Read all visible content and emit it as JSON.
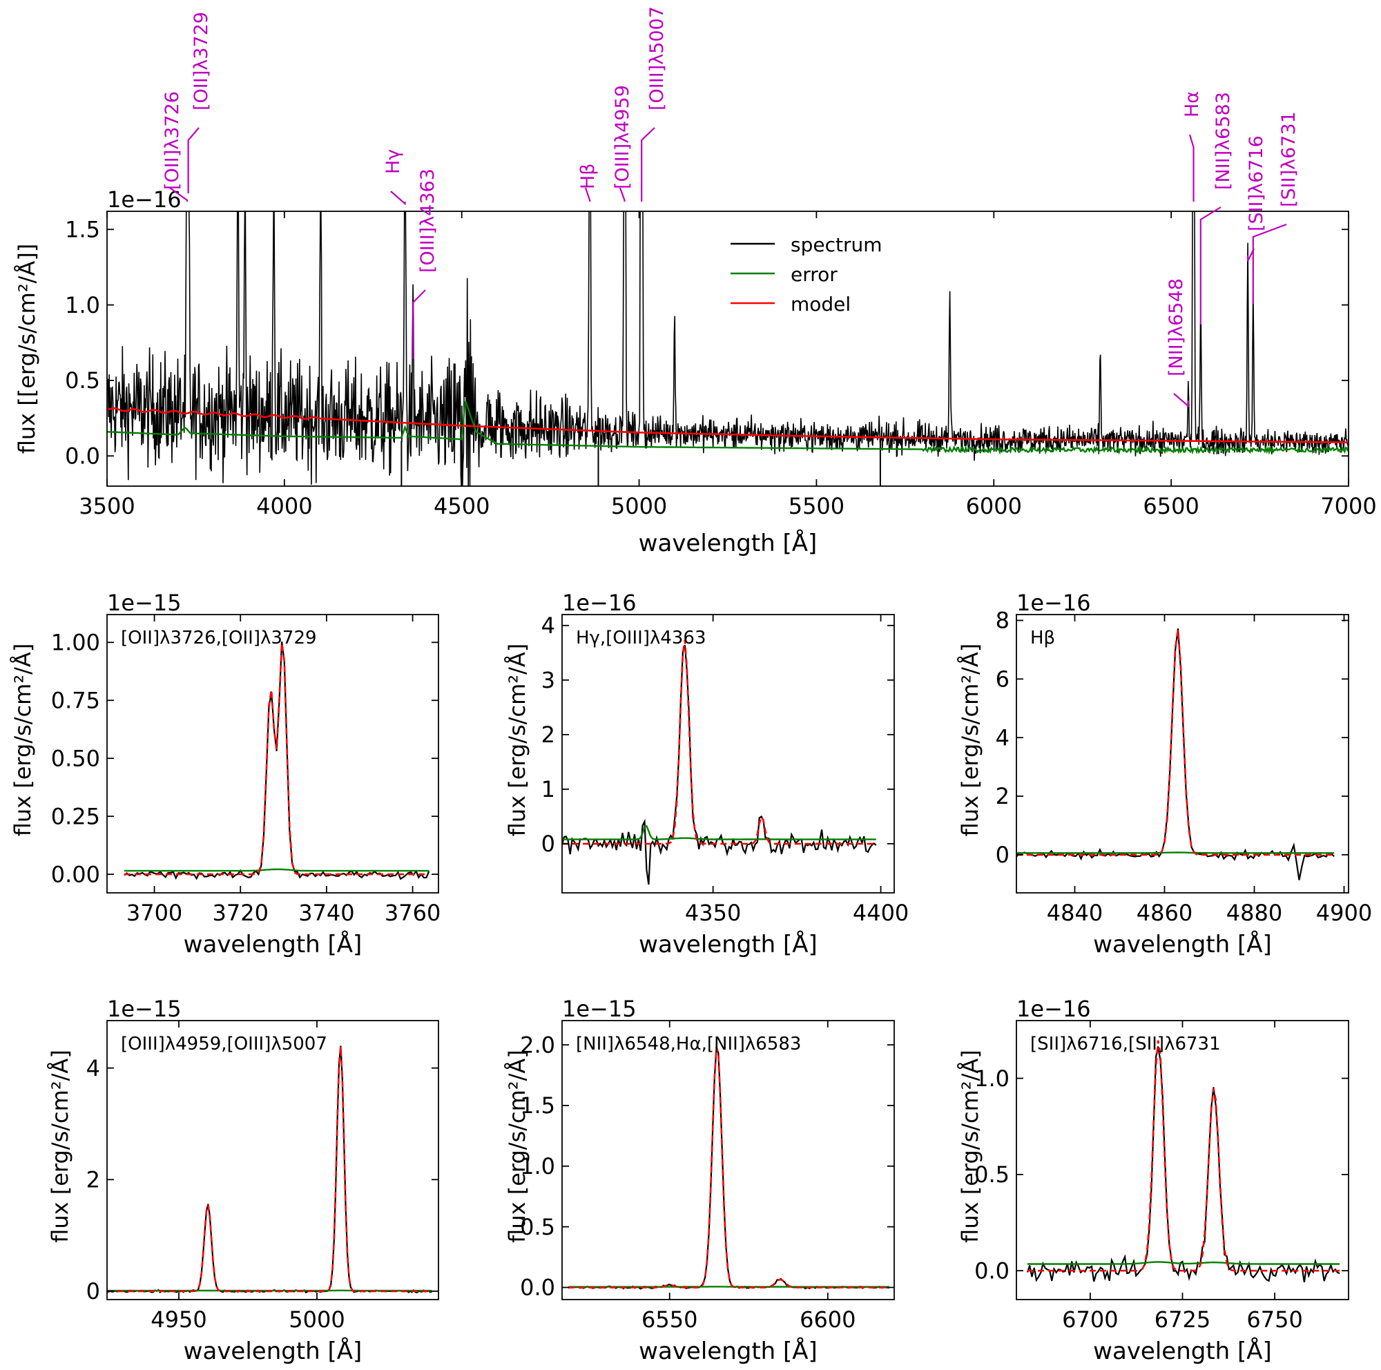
{
  "colors": {
    "spectrum": "#000000",
    "error": "#008000",
    "model": "#ff0000",
    "lines": "#bf00bf"
  },
  "common": {
    "xlabel": "wavelength [Å]"
  },
  "top": {
    "ylabel": "flux [[erg/s/cm²/Å]]",
    "offset": "1e−16",
    "legend": [
      "spectrum",
      "error",
      "model"
    ],
    "line_labels": [
      "[OII]λ3726",
      "[OII]λ3729",
      "Hγ",
      "[OIII]λ4363",
      "Hβ",
      "[OIII]λ4959",
      "[OIII]λ5007",
      "[NII]λ6548",
      "Hα",
      "[NII]λ6583",
      "[SII]λ6716",
      "[SII]λ6731"
    ]
  },
  "panels": [
    {
      "title": "[OII]λ3726,[OII]λ3729",
      "offset": "1e−15",
      "ylabel": "flux [erg/s/cm²/Å]"
    },
    {
      "title": "Hγ,[OIII]λ4363",
      "offset": "1e−16",
      "ylabel": "flux [erg/s/cm²/Å]"
    },
    {
      "title": "Hβ",
      "offset": "1e−16",
      "ylabel": "flux [erg/s/cm²/Å]"
    },
    {
      "title": "[OIII]λ4959,[OIII]λ5007",
      "offset": "1e−15",
      "ylabel": "flux [erg/s/cm²/Å]"
    },
    {
      "title": "[NII]λ6548,Hα,[NII]λ6583",
      "offset": "1e−15",
      "ylabel": "flux [erg/s/cm²/Å]"
    },
    {
      "title": "[SII]λ6716,[SII]λ6731",
      "offset": "1e−16",
      "ylabel": "flux [erg/s/cm²/Å]"
    }
  ],
  "chart_data": [
    {
      "type": "line",
      "title": "",
      "xlabel": "wavelength [Å]",
      "ylabel": "flux [[erg/s/cm²/Å]]",
      "scale": "1e-16",
      "xlim": [
        3500,
        7000
      ],
      "ylim": [
        -0.2,
        1.62
      ],
      "xticks": [
        3500,
        4000,
        4500,
        5000,
        5500,
        6000,
        6500,
        7000
      ],
      "yticks": [
        0.0,
        0.5,
        1.0,
        1.5
      ],
      "legend_position": "upper-center",
      "series": [
        {
          "name": "spectrum",
          "kind": "noisy-continuum",
          "continuum": [
            [
              3500,
              0.32
            ],
            [
              4000,
              0.27
            ],
            [
              4500,
              0.21
            ],
            [
              5000,
              0.16
            ],
            [
              5500,
              0.13
            ],
            [
              6000,
              0.11
            ],
            [
              6500,
              0.1
            ],
            [
              7000,
              0.09
            ]
          ],
          "noise": [
            [
              3500,
              0.2
            ],
            [
              4450,
              0.2
            ],
            [
              4500,
              0.35
            ],
            [
              4540,
              0.16
            ],
            [
              5000,
              0.06
            ],
            [
              7000,
              0.045
            ]
          ],
          "peaks": [
            [
              3726,
              8.2
            ],
            [
              3729,
              10.2
            ],
            [
              3869,
              3.0
            ],
            [
              3889,
              2.0
            ],
            [
              3970,
              2.5
            ],
            [
              4102,
              2.0
            ],
            [
              4340,
              3.9
            ],
            [
              4363,
              0.62
            ],
            [
              4861,
              7.8
            ],
            [
              4959,
              16.0
            ],
            [
              5007,
              44.0
            ],
            [
              5100,
              0.88
            ],
            [
              5876,
              1.05
            ],
            [
              6300,
              0.6
            ],
            [
              6548,
              0.35
            ],
            [
              6563,
              20.5
            ],
            [
              6583,
              0.87
            ],
            [
              6716,
              1.28
            ],
            [
              6731,
              1.0
            ]
          ]
        },
        {
          "name": "error",
          "kind": "smooth",
          "points": [
            [
              3500,
              0.16
            ],
            [
              3700,
              0.14
            ],
            [
              3720,
              0.19
            ],
            [
              3735,
              0.15
            ],
            [
              4000,
              0.13
            ],
            [
              4330,
              0.12
            ],
            [
              4340,
              0.19
            ],
            [
              4350,
              0.13
            ],
            [
              4500,
              0.11
            ],
            [
              4510,
              0.37
            ],
            [
              4540,
              0.16
            ],
            [
              4600,
              0.08
            ],
            [
              5000,
              0.06
            ],
            [
              5500,
              0.05
            ],
            [
              6000,
              0.04
            ],
            [
              7000,
              0.04
            ]
          ]
        },
        {
          "name": "model",
          "kind": "smooth",
          "points": [
            [
              3500,
              0.31
            ],
            [
              4000,
              0.26
            ],
            [
              4500,
              0.2
            ],
            [
              5000,
              0.155
            ],
            [
              5500,
              0.13
            ],
            [
              6000,
              0.11
            ],
            [
              6500,
              0.1
            ],
            [
              7000,
              0.09
            ]
          ]
        }
      ],
      "annotations": [
        {
          "label": "[OII]λ3726",
          "x": 3726
        },
        {
          "label": "[OII]λ3729",
          "x": 3729
        },
        {
          "label": "Hγ",
          "x": 4340
        },
        {
          "label": "[OIII]λ4363",
          "x": 4363
        },
        {
          "label": "Hβ",
          "x": 4861
        },
        {
          "label": "[OIII]λ4959",
          "x": 4959
        },
        {
          "label": "[OIII]λ5007",
          "x": 5007
        },
        {
          "label": "[NII]λ6548",
          "x": 6548
        },
        {
          "label": "Hα",
          "x": 6563
        },
        {
          "label": "[NII]λ6583",
          "x": 6583
        },
        {
          "label": "[SII]λ6716",
          "x": 6716
        },
        {
          "label": "[SII]λ6731",
          "x": 6731
        }
      ]
    },
    {
      "type": "line",
      "title": "[OII]λ3726,[OII]λ3729",
      "xlabel": "wavelength [Å]",
      "ylabel": "flux [erg/s/cm²/Å]",
      "scale": "1e-15",
      "xlim": [
        3689,
        3766
      ],
      "ylim": [
        -0.08,
        1.12
      ],
      "xticks": [
        3700,
        3720,
        3740,
        3760
      ],
      "yticks": [
        0.0,
        0.25,
        0.5,
        0.75,
        1.0
      ],
      "xrange": [
        3693,
        3764
      ],
      "continuum": 0.0,
      "noise": 0.008,
      "err": 0.015,
      "lines": [
        {
          "center": 3727.0,
          "amp": 0.8,
          "sigma": 0.9
        },
        {
          "center": 3729.8,
          "amp": 1.01,
          "sigma": 0.9
        }
      ]
    },
    {
      "type": "line",
      "title": "Hγ,[OIII]λ4363",
      "xlabel": "wavelength [Å]",
      "ylabel": "flux [erg/s/cm²/Å]",
      "scale": "1e-16",
      "xlim": [
        4305,
        4404
      ],
      "ylim": [
        -0.9,
        4.2
      ],
      "xticks": [
        4350,
        4400
      ],
      "yticks": [
        0,
        1,
        2,
        3,
        4
      ],
      "xrange": [
        4305,
        4399
      ],
      "continuum": 0.0,
      "noise": 0.09,
      "err": 0.08,
      "lines": [
        {
          "center": 4341.5,
          "amp": 3.75,
          "sigma": 1.3
        },
        {
          "center": 4364.5,
          "amp": 0.5,
          "sigma": 0.9
        }
      ],
      "features": [
        {
          "center": 4330,
          "amp": 0.6,
          "shape": "p-cygni"
        }
      ]
    },
    {
      "type": "line",
      "title": "Hβ",
      "xlabel": "wavelength [Å]",
      "ylabel": "flux [erg/s/cm²/Å]",
      "scale": "1e-16",
      "xlim": [
        4827,
        4901
      ],
      "ylim": [
        -1.3,
        8.2
      ],
      "xticks": [
        4840,
        4860,
        4880,
        4900
      ],
      "yticks": [
        0,
        2,
        4,
        6,
        8
      ],
      "xrange": [
        4827,
        4898
      ],
      "continuum": 0.0,
      "noise": 0.07,
      "err": 0.06,
      "lines": [
        {
          "center": 4862.9,
          "amp": 7.7,
          "sigma": 1.2
        }
      ],
      "features": [
        {
          "center": 4890,
          "amp": -0.9,
          "shape": "dip"
        }
      ]
    },
    {
      "type": "line",
      "title": "[OIII]λ4959,[OIII]λ5007",
      "xlabel": "wavelength [Å]",
      "ylabel": "flux [erg/s/cm²/Å]",
      "scale": "1e-15",
      "xlim": [
        4924,
        5044
      ],
      "ylim": [
        -0.15,
        4.85
      ],
      "xticks": [
        4950,
        5000
      ],
      "yticks": [
        0,
        2,
        4
      ],
      "xrange": [
        4924,
        5042
      ],
      "continuum": 0.0,
      "noise": 0.01,
      "err": 0.01,
      "lines": [
        {
          "center": 4960.5,
          "amp": 1.55,
          "sigma": 1.3
        },
        {
          "center": 5008.5,
          "amp": 4.4,
          "sigma": 1.3
        }
      ]
    },
    {
      "type": "line",
      "title": "[NII]λ6548,Hα,[NII]λ6583",
      "xlabel": "wavelength [Å]",
      "ylabel": "flux [erg/s/cm²/Å]",
      "scale": "1e-15",
      "xlim": [
        6516,
        6621
      ],
      "ylim": [
        -0.1,
        2.2
      ],
      "xticks": [
        6550,
        6600
      ],
      "yticks": [
        0.0,
        0.5,
        1.0,
        1.5,
        2.0
      ],
      "xrange": [
        6518,
        6620
      ],
      "continuum": 0.0,
      "noise": 0.004,
      "err": 0.005,
      "lines": [
        {
          "center": 6550,
          "amp": 0.02,
          "sigma": 1.5
        },
        {
          "center": 6565,
          "amp": 2.0,
          "sigma": 1.5
        },
        {
          "center": 6585,
          "amp": 0.065,
          "sigma": 1.5
        }
      ]
    },
    {
      "type": "line",
      "title": "[SII]λ6716,[SII]λ6731",
      "xlabel": "wavelength [Å]",
      "ylabel": "flux [erg/s/cm²/Å]",
      "scale": "1e-16",
      "xlim": [
        6680,
        6770
      ],
      "ylim": [
        -0.15,
        1.3
      ],
      "xticks": [
        6700,
        6725,
        6750
      ],
      "yticks": [
        0.0,
        0.5,
        1.0
      ],
      "xrange": [
        6683,
        6768
      ],
      "continuum": 0.0,
      "noise": 0.025,
      "err": 0.035,
      "lines": [
        {
          "center": 6718.5,
          "amp": 1.2,
          "sigma": 1.4
        },
        {
          "center": 6733.5,
          "amp": 0.95,
          "sigma": 1.4
        }
      ]
    }
  ]
}
